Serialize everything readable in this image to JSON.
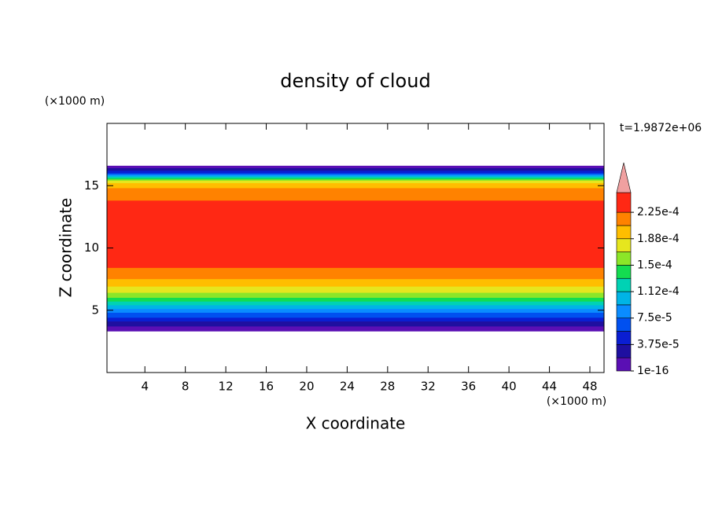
{
  "chart_data": {
    "type": "contour",
    "title": "density of cloud",
    "x_label": "X coordinate",
    "y_label": "Z coordinate",
    "x_unit": "(×1000 m)",
    "y_unit": "(×1000 m)",
    "time_label": "t=1.9872e+06",
    "xlim": [
      0.25,
      49.4
    ],
    "ylim": [
      0,
      20
    ],
    "xticks": [
      4,
      8,
      12,
      16,
      20,
      24,
      28,
      32,
      36,
      40,
      44,
      48
    ],
    "yticks": [
      5,
      10,
      15
    ],
    "levels": [
      1e-16,
      1.875e-05,
      3.75e-05,
      5.625e-05,
      7.5e-05,
      9.375e-05,
      0.0001125,
      0.00013125,
      0.00015,
      0.00016875,
      0.0001875,
      0.00020625,
      0.000225
    ],
    "colors": [
      "#5a0fb4",
      "#1e0fa0",
      "#0a1ed2",
      "#0050f0",
      "#0a8cff",
      "#00b4e6",
      "#00d2b4",
      "#14dc50",
      "#8ce628",
      "#e6e61e",
      "#ffbe00",
      "#ff8200",
      "#ff2814"
    ],
    "extend_color": "#f0a0a0",
    "cbar_lim": [
      0,
      0.000253
    ],
    "cbar_ticks": [
      {
        "value": 1e-16,
        "label": "1e-16"
      },
      {
        "value": 3.75e-05,
        "label": "3.75e-5"
      },
      {
        "value": 7.5e-05,
        "label": "7.5e-5"
      },
      {
        "value": 0.0001125,
        "label": "1.12e-4"
      },
      {
        "value": 0.00015,
        "label": "1.5e-4"
      },
      {
        "value": 0.0001875,
        "label": "1.88e-4"
      },
      {
        "value": 0.000225,
        "label": "2.25e-4"
      }
    ],
    "regions": [
      {
        "zmin": 3.3,
        "zmax": 16.6
      },
      {
        "zmin": 3.7,
        "zmax": 16.4
      },
      {
        "zmin": 4.1,
        "zmax": 16.2
      },
      {
        "zmin": 4.4,
        "zmax": 16.0
      },
      {
        "zmin": 4.8,
        "zmax": 15.9
      },
      {
        "zmin": 5.1,
        "zmax": 15.8
      },
      {
        "zmin": 5.4,
        "zmax": 15.7
      },
      {
        "zmin": 5.7,
        "zmax": 15.6
      },
      {
        "zmin": 6.0,
        "zmax": 15.5
      },
      {
        "zmin": 6.4,
        "zmax": 15.4
      },
      {
        "zmin": 6.9,
        "zmax": 15.2
      },
      {
        "zmin": 7.5,
        "zmax": 14.8
      },
      {
        "zmin": 8.4,
        "zmax": 13.8
      }
    ]
  }
}
